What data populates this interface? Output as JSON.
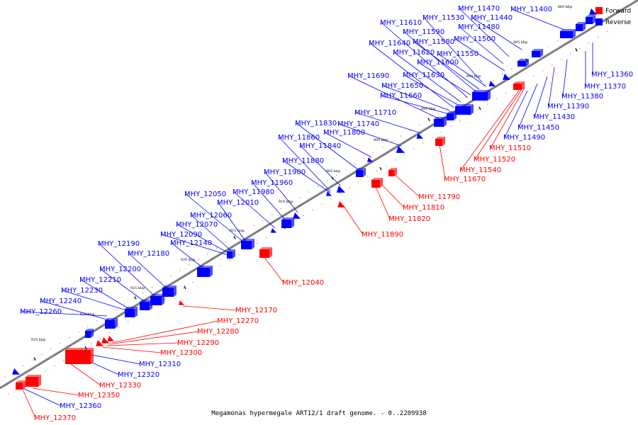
{
  "caption": "Megamonas hypermegale ART12/1 draft genome. - 0..2209938",
  "colors": {
    "forward": "#ff0000",
    "reverse": "#0000ff",
    "axis": "#808080"
  },
  "legend": [
    {
      "key": "forward",
      "label": "Forward"
    },
    {
      "key": "reverse",
      "label": "Reverse"
    }
  ],
  "ticks": [
    "880 kbp",
    "885 kbp",
    "890 kbp",
    "895 kbp",
    "900 kbp",
    "905 kbp",
    "910 kbp",
    "915 kbp",
    "920 kbp",
    "925 kbp",
    "930 kbp",
    "935 kbp"
  ],
  "reverse_genes": [
    "MHY_11360",
    "MHY_11370",
    "MHY_11380",
    "MHY_11390",
    "MHY_11400",
    "MHY_11430",
    "MHY_11440",
    "MHY_11450",
    "MHY_11470",
    "MHY_11480",
    "MHY_11490",
    "MHY_11500",
    "MHY_11530",
    "MHY_11550",
    "MHY_11580",
    "MHY_11590",
    "MHY_11600",
    "MHY_11610",
    "MHY_11620",
    "MHY_11630",
    "MHY_11640",
    "MHY_11650",
    "MHY_11660",
    "MHY_11690",
    "MHY_11710",
    "MHY_11740",
    "MHY_11800",
    "MHY_11830",
    "MHY_11840",
    "MHY_11860",
    "MHY_11880",
    "MHY_11900",
    "MHY_11960",
    "MHY_11980",
    "MHY_12010",
    "MHY_12050",
    "MHY_12060",
    "MHY_12070",
    "MHY_12090",
    "MHY_12140",
    "MHY_12180",
    "MHY_12190",
    "MHY_12200",
    "MHY_12210",
    "MHY_12230",
    "MHY_12240",
    "MHY_12260",
    "MHY_12310",
    "MHY_12320",
    "MHY_12360"
  ],
  "forward_genes": [
    "MHY_11510",
    "MHY_11520",
    "MHY_11540",
    "MHY_11670",
    "MHY_11790",
    "MHY_11810",
    "MHY_11820",
    "MHY_11890",
    "MHY_12040",
    "MHY_12170",
    "MHY_12270",
    "MHY_12280",
    "MHY_12290",
    "MHY_12300",
    "MHY_12330",
    "MHY_12350",
    "MHY_12370"
  ]
}
